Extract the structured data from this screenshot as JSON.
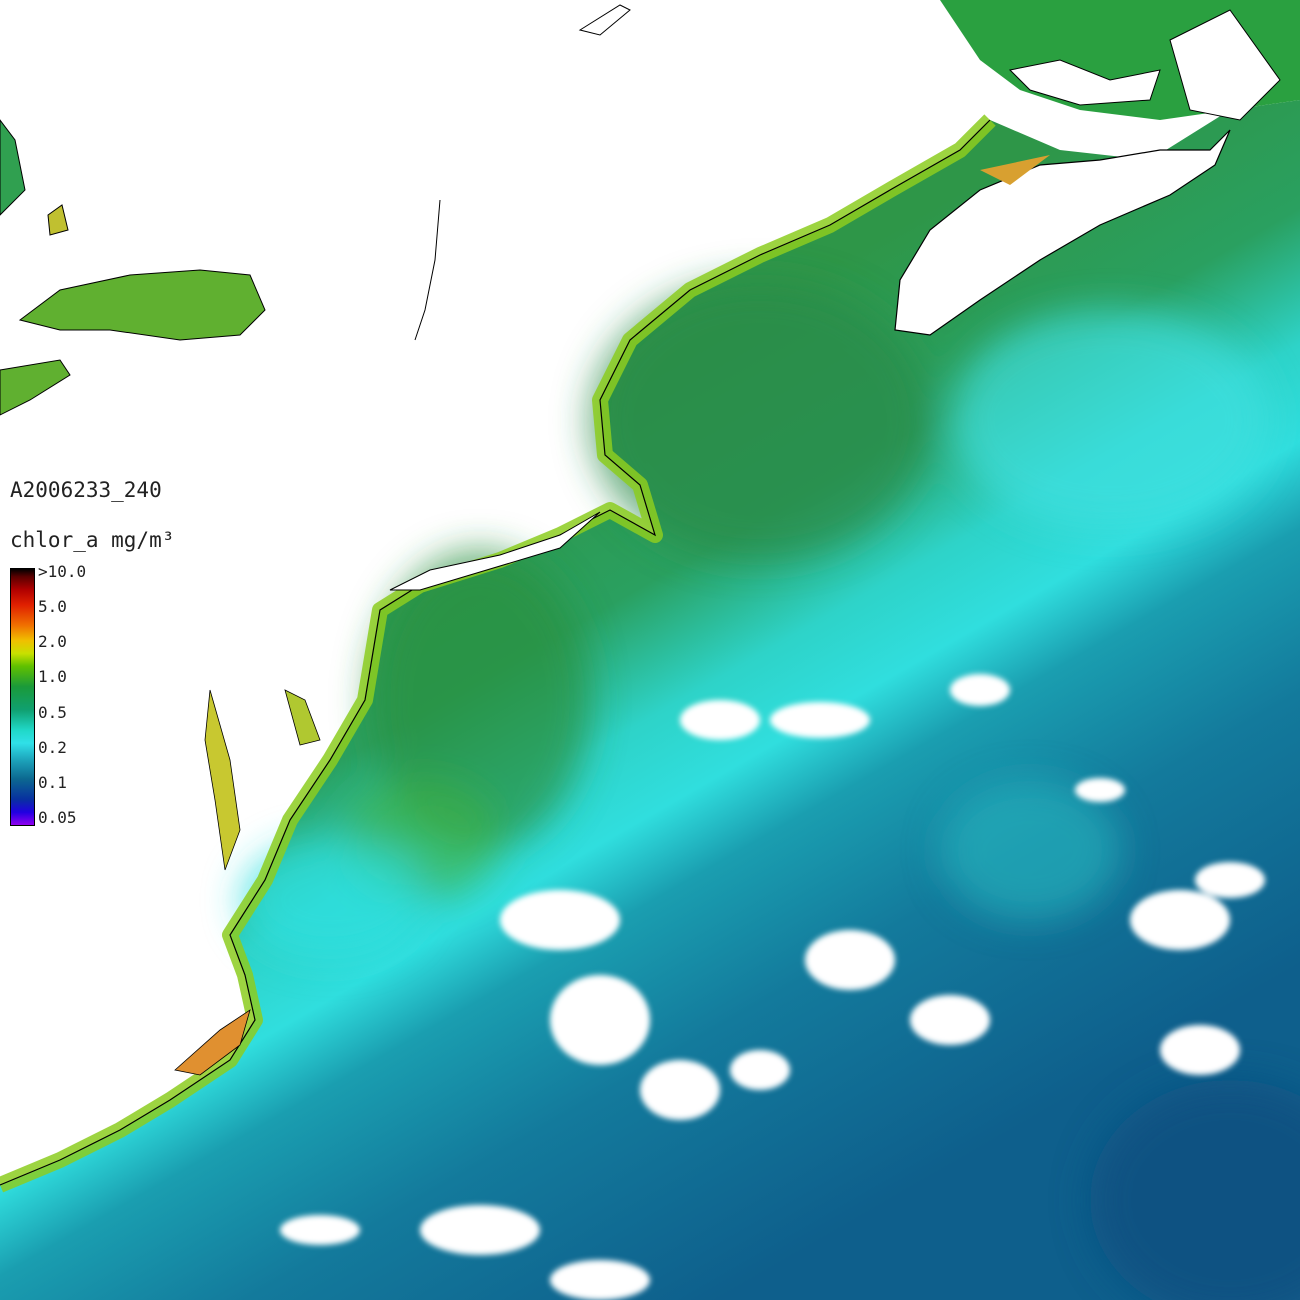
{
  "title": "A2006233_240",
  "units": "chlor_a mg/m³",
  "colorbar": {
    "labels": [
      ">10.0",
      "5.0",
      "2.0",
      "1.0",
      "0.5",
      "0.2",
      "0.1",
      "0.05"
    ]
  }
}
